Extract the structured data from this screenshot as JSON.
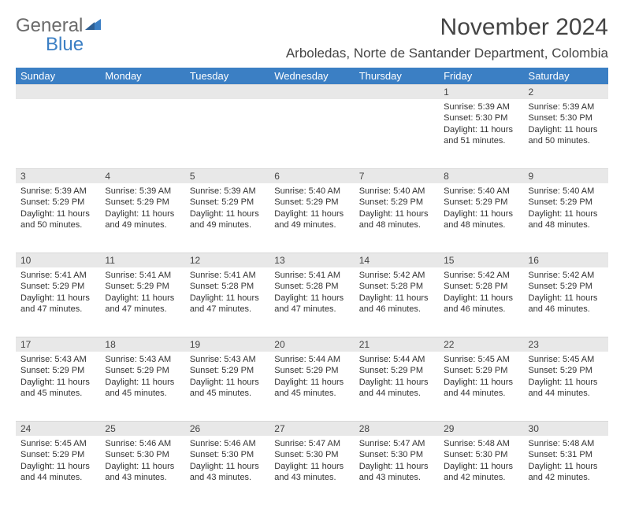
{
  "logo": {
    "text1": "General",
    "text2": "Blue"
  },
  "title": "November 2024",
  "location": "Arboledas, Norte de Santander Department, Colombia",
  "colors": {
    "header_bg": "#3b7fc4",
    "header_fg": "#ffffff",
    "daynum_bg": "#e8e8e8",
    "text": "#333333",
    "logo_gray": "#6b6b6b",
    "logo_blue": "#3b7fc4"
  },
  "weekdays": [
    "Sunday",
    "Monday",
    "Tuesday",
    "Wednesday",
    "Thursday",
    "Friday",
    "Saturday"
  ],
  "weeks": [
    [
      null,
      null,
      null,
      null,
      null,
      {
        "n": "1",
        "sunrise": "Sunrise: 5:39 AM",
        "sunset": "Sunset: 5:30 PM",
        "daylight": "Daylight: 11 hours and 51 minutes."
      },
      {
        "n": "2",
        "sunrise": "Sunrise: 5:39 AM",
        "sunset": "Sunset: 5:30 PM",
        "daylight": "Daylight: 11 hours and 50 minutes."
      }
    ],
    [
      {
        "n": "3",
        "sunrise": "Sunrise: 5:39 AM",
        "sunset": "Sunset: 5:29 PM",
        "daylight": "Daylight: 11 hours and 50 minutes."
      },
      {
        "n": "4",
        "sunrise": "Sunrise: 5:39 AM",
        "sunset": "Sunset: 5:29 PM",
        "daylight": "Daylight: 11 hours and 49 minutes."
      },
      {
        "n": "5",
        "sunrise": "Sunrise: 5:39 AM",
        "sunset": "Sunset: 5:29 PM",
        "daylight": "Daylight: 11 hours and 49 minutes."
      },
      {
        "n": "6",
        "sunrise": "Sunrise: 5:40 AM",
        "sunset": "Sunset: 5:29 PM",
        "daylight": "Daylight: 11 hours and 49 minutes."
      },
      {
        "n": "7",
        "sunrise": "Sunrise: 5:40 AM",
        "sunset": "Sunset: 5:29 PM",
        "daylight": "Daylight: 11 hours and 48 minutes."
      },
      {
        "n": "8",
        "sunrise": "Sunrise: 5:40 AM",
        "sunset": "Sunset: 5:29 PM",
        "daylight": "Daylight: 11 hours and 48 minutes."
      },
      {
        "n": "9",
        "sunrise": "Sunrise: 5:40 AM",
        "sunset": "Sunset: 5:29 PM",
        "daylight": "Daylight: 11 hours and 48 minutes."
      }
    ],
    [
      {
        "n": "10",
        "sunrise": "Sunrise: 5:41 AM",
        "sunset": "Sunset: 5:29 PM",
        "daylight": "Daylight: 11 hours and 47 minutes."
      },
      {
        "n": "11",
        "sunrise": "Sunrise: 5:41 AM",
        "sunset": "Sunset: 5:29 PM",
        "daylight": "Daylight: 11 hours and 47 minutes."
      },
      {
        "n": "12",
        "sunrise": "Sunrise: 5:41 AM",
        "sunset": "Sunset: 5:28 PM",
        "daylight": "Daylight: 11 hours and 47 minutes."
      },
      {
        "n": "13",
        "sunrise": "Sunrise: 5:41 AM",
        "sunset": "Sunset: 5:28 PM",
        "daylight": "Daylight: 11 hours and 47 minutes."
      },
      {
        "n": "14",
        "sunrise": "Sunrise: 5:42 AM",
        "sunset": "Sunset: 5:28 PM",
        "daylight": "Daylight: 11 hours and 46 minutes."
      },
      {
        "n": "15",
        "sunrise": "Sunrise: 5:42 AM",
        "sunset": "Sunset: 5:28 PM",
        "daylight": "Daylight: 11 hours and 46 minutes."
      },
      {
        "n": "16",
        "sunrise": "Sunrise: 5:42 AM",
        "sunset": "Sunset: 5:29 PM",
        "daylight": "Daylight: 11 hours and 46 minutes."
      }
    ],
    [
      {
        "n": "17",
        "sunrise": "Sunrise: 5:43 AM",
        "sunset": "Sunset: 5:29 PM",
        "daylight": "Daylight: 11 hours and 45 minutes."
      },
      {
        "n": "18",
        "sunrise": "Sunrise: 5:43 AM",
        "sunset": "Sunset: 5:29 PM",
        "daylight": "Daylight: 11 hours and 45 minutes."
      },
      {
        "n": "19",
        "sunrise": "Sunrise: 5:43 AM",
        "sunset": "Sunset: 5:29 PM",
        "daylight": "Daylight: 11 hours and 45 minutes."
      },
      {
        "n": "20",
        "sunrise": "Sunrise: 5:44 AM",
        "sunset": "Sunset: 5:29 PM",
        "daylight": "Daylight: 11 hours and 45 minutes."
      },
      {
        "n": "21",
        "sunrise": "Sunrise: 5:44 AM",
        "sunset": "Sunset: 5:29 PM",
        "daylight": "Daylight: 11 hours and 44 minutes."
      },
      {
        "n": "22",
        "sunrise": "Sunrise: 5:45 AM",
        "sunset": "Sunset: 5:29 PM",
        "daylight": "Daylight: 11 hours and 44 minutes."
      },
      {
        "n": "23",
        "sunrise": "Sunrise: 5:45 AM",
        "sunset": "Sunset: 5:29 PM",
        "daylight": "Daylight: 11 hours and 44 minutes."
      }
    ],
    [
      {
        "n": "24",
        "sunrise": "Sunrise: 5:45 AM",
        "sunset": "Sunset: 5:29 PM",
        "daylight": "Daylight: 11 hours and 44 minutes."
      },
      {
        "n": "25",
        "sunrise": "Sunrise: 5:46 AM",
        "sunset": "Sunset: 5:30 PM",
        "daylight": "Daylight: 11 hours and 43 minutes."
      },
      {
        "n": "26",
        "sunrise": "Sunrise: 5:46 AM",
        "sunset": "Sunset: 5:30 PM",
        "daylight": "Daylight: 11 hours and 43 minutes."
      },
      {
        "n": "27",
        "sunrise": "Sunrise: 5:47 AM",
        "sunset": "Sunset: 5:30 PM",
        "daylight": "Daylight: 11 hours and 43 minutes."
      },
      {
        "n": "28",
        "sunrise": "Sunrise: 5:47 AM",
        "sunset": "Sunset: 5:30 PM",
        "daylight": "Daylight: 11 hours and 43 minutes."
      },
      {
        "n": "29",
        "sunrise": "Sunrise: 5:48 AM",
        "sunset": "Sunset: 5:30 PM",
        "daylight": "Daylight: 11 hours and 42 minutes."
      },
      {
        "n": "30",
        "sunrise": "Sunrise: 5:48 AM",
        "sunset": "Sunset: 5:31 PM",
        "daylight": "Daylight: 11 hours and 42 minutes."
      }
    ]
  ]
}
